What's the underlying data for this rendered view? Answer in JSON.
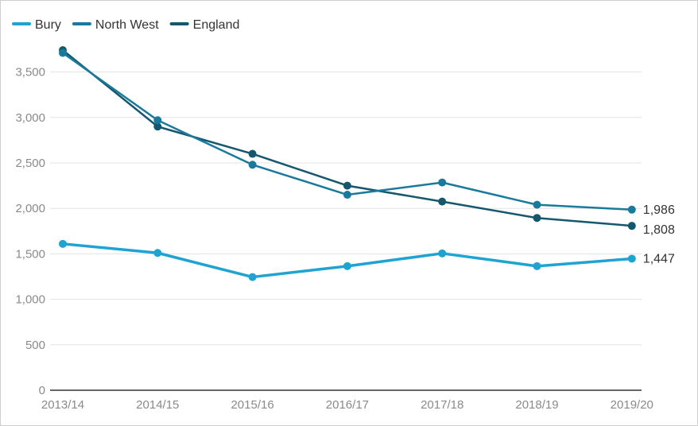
{
  "chart_data": {
    "type": "line",
    "title": "",
    "xlabel": "",
    "ylabel": "",
    "categories": [
      "2013/14",
      "2014/15",
      "2015/16",
      "2016/17",
      "2017/18",
      "2018/19",
      "2019/20"
    ],
    "ylim": [
      0,
      3750
    ],
    "yticks": [
      0,
      500,
      1000,
      1500,
      2000,
      2500,
      3000,
      3500
    ],
    "ytick_labels": [
      "0",
      "500",
      "1,000",
      "1,500",
      "2,000",
      "2,500",
      "3,000",
      "3,500"
    ],
    "grid": true,
    "legend_position": "top-left",
    "series": [
      {
        "name": "Bury",
        "color": "#1fa3d1",
        "values": [
          1610,
          1510,
          1245,
          1365,
          1505,
          1365,
          1447
        ],
        "end_label": "1,447"
      },
      {
        "name": "North West",
        "color": "#1a7a9c",
        "values": [
          3710,
          2970,
          2480,
          2150,
          2285,
          2040,
          1986
        ],
        "end_label": "1,986"
      },
      {
        "name": "England",
        "color": "#15586e",
        "values": [
          3740,
          2900,
          2600,
          2250,
          2075,
          1895,
          1808
        ],
        "end_label": "1,808"
      }
    ]
  }
}
